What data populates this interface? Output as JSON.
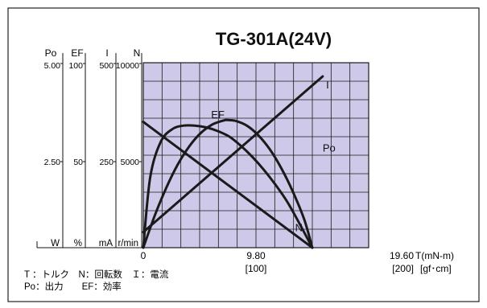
{
  "chart_data": {
    "type": "line",
    "title": "TG-301A(24V)",
    "x_axis": {
      "label": "T(mN-m)",
      "unit_secondary": "[gf･cm]",
      "tick_labels": [
        "0",
        "9.80",
        "19.60"
      ],
      "secondary_tick_labels": [
        "",
        "[100]",
        "[200]"
      ],
      "range": [
        0,
        19.6
      ],
      "gridlines": 12
    },
    "y_axes": [
      {
        "name": "Po",
        "unit": "W",
        "range": [
          0,
          5.0
        ],
        "tick_labels": [
          "5.00",
          "2.50"
        ]
      },
      {
        "name": "EF",
        "unit": "%",
        "range": [
          0,
          100
        ],
        "tick_labels": [
          "100",
          "50"
        ]
      },
      {
        "name": "I",
        "unit": "mA",
        "range": [
          0,
          500
        ],
        "tick_labels": [
          "500",
          "250"
        ]
      },
      {
        "name": "N",
        "unit": "r/min",
        "range": [
          0,
          10000
        ],
        "tick_labels": [
          "10000",
          "5000"
        ]
      }
    ],
    "grid": true,
    "plot_background": "#cfc9e9",
    "line_color": "#1a1a1a",
    "series": [
      {
        "name": "N",
        "axis": "N",
        "x": [
          0,
          14.7
        ],
        "y": [
          6800,
          0
        ]
      },
      {
        "name": "I",
        "axis": "I",
        "x": [
          0,
          15.6
        ],
        "y": [
          42,
          463
        ]
      },
      {
        "name": "EF",
        "axis": "EF",
        "x": [
          0,
          0.6,
          1.5,
          2.5,
          3.5,
          4.5,
          5.5,
          6.5,
          7.5,
          8.5,
          9.5,
          10.5,
          11.5,
          12.5,
          13.5,
          14.7
        ],
        "y": [
          0,
          38,
          57,
          64,
          66,
          66,
          65,
          63,
          60,
          55,
          49,
          42,
          34,
          25,
          14,
          0
        ]
      },
      {
        "name": "Po",
        "axis": "Po",
        "x": [
          0,
          1,
          2,
          3,
          4,
          5,
          6,
          7,
          7.35,
          8,
          9,
          10,
          11,
          12,
          13,
          14,
          14.7
        ],
        "y": [
          0,
          0.87,
          1.62,
          2.25,
          2.74,
          3.1,
          3.33,
          3.44,
          3.45,
          3.43,
          3.3,
          3.04,
          2.66,
          2.15,
          1.52,
          0.76,
          0
        ]
      }
    ],
    "series_labels": [
      "N",
      "I",
      "EF",
      "Po"
    ]
  },
  "legend_text": {
    "line1": "T ：トルク　N：回転数　Ｉ：電流",
    "line2": "Po：出力　　EF：効率"
  }
}
